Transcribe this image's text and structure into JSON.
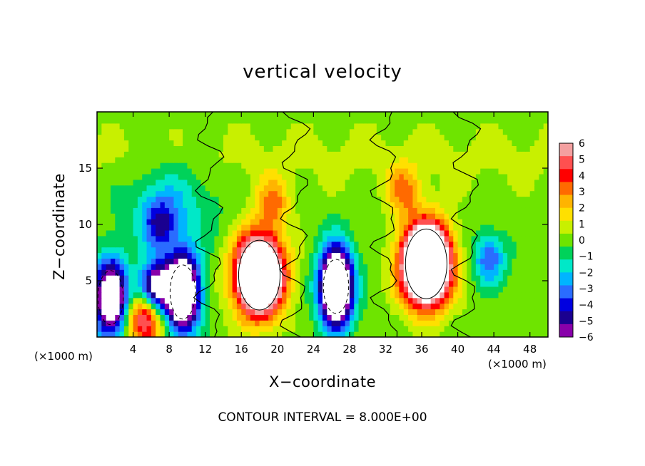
{
  "chart_data": {
    "type": "heatmap",
    "title": "vertical velocity",
    "xlabel": "X−coordinate",
    "ylabel": "Z−coordinate",
    "x_unit_label_left": "(×1000 m)",
    "x_unit_label_right": "(×1000 m)",
    "footnote": "CONTOUR INTERVAL = 8.000E+00",
    "xlim": [
      0,
      50
    ],
    "ylim": [
      0,
      20
    ],
    "x_ticks": [
      4,
      8,
      12,
      16,
      20,
      24,
      28,
      32,
      36,
      40,
      44,
      48
    ],
    "y_ticks": [
      5,
      10,
      15
    ],
    "colorbar": {
      "ticks": [
        "6",
        "5",
        "4",
        "3",
        "2",
        "1",
        "0",
        "−1",
        "−2",
        "−3",
        "−4",
        "−5",
        "−6"
      ],
      "range": [
        -6,
        6
      ],
      "colors": [
        "#f4a0a0",
        "#ff5050",
        "#ff0000",
        "#ff6a00",
        "#ffb400",
        "#ffe000",
        "#c8f000",
        "#6ee400",
        "#00d25a",
        "#00e8c8",
        "#00b4ff",
        "#2a6cff",
        "#0000e0",
        "#1a0090",
        "#8800aa"
      ]
    },
    "features": [
      {
        "kind": "updraft",
        "x": 18,
        "z": 5.5,
        "peak": 14
      },
      {
        "kind": "updraft",
        "x": 36.5,
        "z": 6.5,
        "peak": 16
      },
      {
        "kind": "updraft",
        "x": 19.5,
        "z": 12,
        "peak": 3
      },
      {
        "kind": "updraft",
        "x": 34,
        "z": 13,
        "peak": 3
      },
      {
        "kind": "updraft",
        "x": 5.3,
        "z": 1.5,
        "peak": 6
      },
      {
        "kind": "downdraft",
        "x": 26.5,
        "z": 4.5,
        "peak": -12
      },
      {
        "kind": "downdraft",
        "x": 9.5,
        "z": 4,
        "peak": -11
      },
      {
        "kind": "downdraft",
        "x": 1.5,
        "z": 3.5,
        "peak": -9
      },
      {
        "kind": "downdraft",
        "x": 6.5,
        "z": 4.5,
        "peak": -7
      },
      {
        "kind": "downdraft",
        "x": 7,
        "z": 10,
        "peak": -3.5
      },
      {
        "kind": "downdraft",
        "x": 43.5,
        "z": 7,
        "peak": -3.5
      }
    ]
  }
}
